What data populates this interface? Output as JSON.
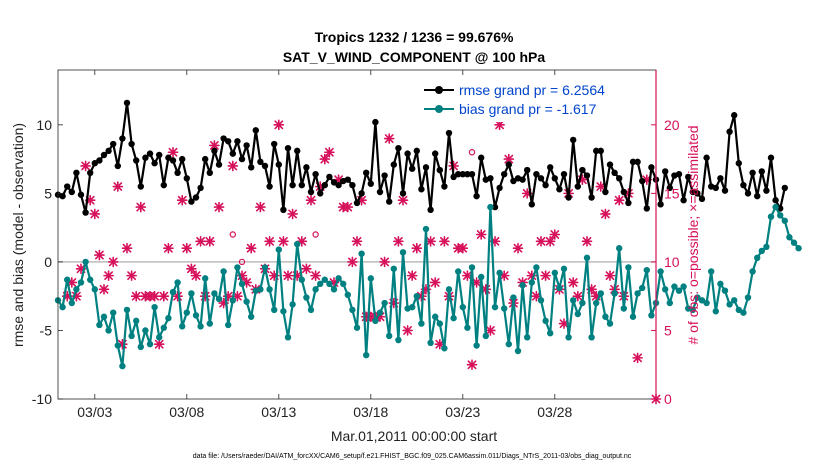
{
  "chart_data": {
    "type": "line",
    "title_line1": "Tropics 1232 / 1236 = 99.676%",
    "title_line2": "SAT_V_WIND_COMPONENT @ 100 hPa",
    "xlabel": "Mar.01,2011 00:00:00 start",
    "ylabel_left": "rmse and bias (model - observation)",
    "ylabel_right": "# of obs: o=possible; ×=assimilated",
    "footer": "data file: /Users/raeder/DAI/ATM_forcXX/CAM6_setup/f.e21.FHIST_BGC.f09_025.CAM6assim.011/Diags_NTrS_2011-03/obs_diag_output.nc",
    "x_unit": "days since Mar.01,2011 00:00",
    "xlim": [
      1,
      33.5
    ],
    "ylim_left": [
      -10,
      14
    ],
    "ylim_right": [
      0,
      24
    ],
    "x_ticks": [
      {
        "v": 3,
        "label": "03/03"
      },
      {
        "v": 8,
        "label": "03/08"
      },
      {
        "v": 13,
        "label": "03/13"
      },
      {
        "v": 18,
        "label": "03/18"
      },
      {
        "v": 23,
        "label": "03/23"
      },
      {
        "v": 28,
        "label": "03/28"
      }
    ],
    "y_ticks_left": [
      {
        "v": -10,
        "label": "-10"
      },
      {
        "v": -5,
        "label": "-5"
      },
      {
        "v": 0,
        "label": "0"
      },
      {
        "v": 5,
        "label": "5"
      },
      {
        "v": 10,
        "label": "10"
      }
    ],
    "y_ticks_right": [
      {
        "v": 0,
        "label": "0"
      },
      {
        "v": 5,
        "label": "5"
      },
      {
        "v": 10,
        "label": "10"
      },
      {
        "v": 15,
        "label": "15"
      },
      {
        "v": 20,
        "label": "20"
      }
    ],
    "colors": {
      "rmse": "#000000",
      "bias": "#008080",
      "obs": "#d6105a",
      "zero": "#bbbbbb",
      "legend_text": "#0044cc"
    },
    "x_step": 0.25,
    "series": [
      {
        "name": "rmse grand pr = 6.2564",
        "axis": "left",
        "color": "#000000",
        "values": [
          4.9,
          4.8,
          5.5,
          5.1,
          6.5,
          4.9,
          3.6,
          6.5,
          7.2,
          7.4,
          7.8,
          8.1,
          8.6,
          7.0,
          9.0,
          11.6,
          8.6,
          7.4,
          5.5,
          7.6,
          7.9,
          7.2,
          7.8,
          5.6,
          7.6,
          7.4,
          6.5,
          7.5,
          6.1,
          4.4,
          4.7,
          5.4,
          7.5,
          6.5,
          8.1,
          7.1,
          9.0,
          8.8,
          7.9,
          8.8,
          7.5,
          8.5,
          6.9,
          9.6,
          7.3,
          7.0,
          5.5,
          8.6,
          7.1,
          3.8,
          8.3,
          5.6,
          8.1,
          5.6,
          6.9,
          5.1,
          6.4,
          5.0,
          5.6,
          6.2,
          5.8,
          5.6,
          5.9,
          6.0,
          5.6,
          4.3,
          5.0,
          6.5,
          5.7,
          10.2,
          5.1,
          6.3,
          4.4,
          7.1,
          8.3,
          5.0,
          7.9,
          6.8,
          8.1,
          5.3,
          6.9,
          3.8,
          7.9,
          6.7,
          5.5,
          9.4,
          6.2,
          6.4,
          6.4,
          6.4,
          6.4,
          4.8,
          7.6,
          6.0,
          6.1,
          4.0,
          5.4,
          6.4,
          7.1,
          5.9,
          6.1,
          6.0,
          6.7,
          4.2,
          6.4,
          6.1,
          5.6,
          6.9,
          6.1,
          5.3,
          6.4,
          4.7,
          8.9,
          5.5,
          6.7,
          6.3,
          4.7,
          8.1,
          8.1,
          5.1,
          7.1,
          6.5,
          6.1,
          5.1,
          4.3,
          7.3,
          7.3,
          5.9,
          3.9,
          6.9,
          6.0,
          4.2,
          6.6,
          5.4,
          6.3,
          6.4,
          4.5,
          6.2,
          5.1,
          5.0,
          4.6,
          7.6,
          5.5,
          5.4,
          6.1,
          5.2,
          9.5,
          10.7,
          7.2,
          5.6,
          5.0,
          6.5,
          4.8,
          6.6,
          5.2,
          7.6,
          4.5,
          3.9,
          5.4
        ]
      },
      {
        "name": "bias grand pr = -1.617",
        "axis": "left",
        "color": "#008080",
        "values": [
          -2.8,
          -3.3,
          -1.3,
          -3.0,
          -2.0,
          -1.5,
          0.0,
          -1.3,
          -2.0,
          -4.6,
          -4.0,
          -5.0,
          -3.7,
          -6.1,
          -7.6,
          -3.5,
          -5.4,
          -4.3,
          -6.2,
          -5.0,
          -6.0,
          -3.3,
          -5.5,
          -4.8,
          -4.1,
          -2.2,
          -1.5,
          -4.7,
          -3.7,
          -2.3,
          -3.9,
          -4.7,
          -1.2,
          -4.5,
          -2.3,
          -2.7,
          -0.7,
          -4.6,
          -2.8,
          -0.4,
          -1.6,
          -2.9,
          -4.0,
          -2.1,
          -2.0,
          -0.4,
          -2.0,
          -3.5,
          0.9,
          -3.6,
          -5.5,
          -3.1,
          1.3,
          -1.3,
          -2.6,
          -3.5,
          -2.0,
          -1.6,
          -1.3,
          -1.6,
          -2.0,
          -1.2,
          -1.6,
          -2.4,
          -3.5,
          -4.8,
          0.6,
          -6.8,
          -1.2,
          -4.3,
          -3.7,
          -3.0,
          -5.4,
          -0.5,
          -5.7,
          0.7,
          -3.4,
          -3.3,
          -2.5,
          -4.5,
          2.4,
          -5.9,
          -4.0,
          -4.5,
          -6.3,
          -2.0,
          -4.1,
          -0.7,
          -3.3,
          -4.8,
          -0.4,
          -6.1,
          -1.1,
          -5.4,
          4.0,
          -3.3,
          -0.8,
          -3.4,
          -6.0,
          -2.6,
          -6.5,
          -1.7,
          -5.5,
          -1.5,
          -0.4,
          -2.8,
          -4.3,
          -5.2,
          -0.8,
          -1.9,
          -0.5,
          -5.5,
          -2.8,
          -3.8,
          -3.0,
          0.3,
          -5.5,
          -3.0,
          -2.3,
          -4.0,
          -4.5,
          -2.3,
          1.0,
          -3.4,
          -0.4,
          -4.0,
          -2.3,
          -1.9,
          -0.6,
          -3.9,
          -3.0,
          -0.7,
          -2.0,
          -3.0,
          -1.8,
          -2.1,
          -1.8,
          -3.4,
          -3.5,
          -2.6,
          -2.8,
          -3.0,
          -0.7,
          -3.6,
          -1.6,
          -2.1,
          -3.1,
          -2.8,
          -3.5,
          -3.7,
          -2.6,
          -0.7,
          0.3,
          0.8,
          1.1,
          3.3,
          4.0,
          3.4,
          3.0,
          1.8,
          1.4,
          1.0
        ]
      }
    ],
    "obs_assimilated": [
      {
        "x": 1.5,
        "n": 7.5
      },
      {
        "x": 1.75,
        "n": 8.5
      },
      {
        "x": 2.0,
        "n": 7.5
      },
      {
        "x": 2.25,
        "n": 9.5
      },
      {
        "x": 2.5,
        "n": 17.0
      },
      {
        "x": 2.75,
        "n": 14.5
      },
      {
        "x": 3.0,
        "n": 13.5
      },
      {
        "x": 3.25,
        "n": 10.5
      },
      {
        "x": 3.5,
        "n": 8.0
      },
      {
        "x": 3.75,
        "n": 9.0
      },
      {
        "x": 4.0,
        "n": 10.0
      },
      {
        "x": 4.25,
        "n": 15.5
      },
      {
        "x": 4.5,
        "n": 4.0
      },
      {
        "x": 4.75,
        "n": 11.0
      },
      {
        "x": 5.0,
        "n": 9.0
      },
      {
        "x": 5.25,
        "n": 7.5
      },
      {
        "x": 5.5,
        "n": 14.0
      },
      {
        "x": 5.75,
        "n": 7.5
      },
      {
        "x": 6.0,
        "n": 7.5
      },
      {
        "x": 6.25,
        "n": 7.5
      },
      {
        "x": 6.5,
        "n": 4.0
      },
      {
        "x": 6.75,
        "n": 7.5
      },
      {
        "x": 7.0,
        "n": 11.0
      },
      {
        "x": 7.25,
        "n": 18.0
      },
      {
        "x": 7.5,
        "n": 7.5
      },
      {
        "x": 7.75,
        "n": 14.5
      },
      {
        "x": 8.0,
        "n": 11.0
      },
      {
        "x": 8.25,
        "n": 9.5
      },
      {
        "x": 8.5,
        "n": 9.0
      },
      {
        "x": 8.75,
        "n": 11.5
      },
      {
        "x": 9.0,
        "n": 7.5
      },
      {
        "x": 9.25,
        "n": 11.5
      },
      {
        "x": 9.5,
        "n": 18.5
      },
      {
        "x": 9.75,
        "n": 14.0
      },
      {
        "x": 10.0,
        "n": 7.0
      },
      {
        "x": 10.25,
        "n": 7.5
      },
      {
        "x": 10.5,
        "n": 17.0
      },
      {
        "x": 10.75,
        "n": 7.5
      },
      {
        "x": 11.0,
        "n": 9.0
      },
      {
        "x": 11.25,
        "n": 8.5
      },
      {
        "x": 11.5,
        "n": 11.0
      },
      {
        "x": 11.75,
        "n": 8.0
      },
      {
        "x": 12.0,
        "n": 14.0
      },
      {
        "x": 12.25,
        "n": 9.5
      },
      {
        "x": 12.5,
        "n": 11.5
      },
      {
        "x": 12.75,
        "n": 9.0
      },
      {
        "x": 13.0,
        "n": 20.0
      },
      {
        "x": 13.25,
        "n": 11.5
      },
      {
        "x": 13.5,
        "n": 9.0
      },
      {
        "x": 13.75,
        "n": 13.5
      },
      {
        "x": 14.0,
        "n": 9.0
      },
      {
        "x": 14.25,
        "n": 11.5
      },
      {
        "x": 14.5,
        "n": 9.5
      },
      {
        "x": 14.75,
        "n": 14.5
      },
      {
        "x": 15.0,
        "n": 9.0
      },
      {
        "x": 15.25,
        "n": 15.5
      },
      {
        "x": 15.5,
        "n": 17.5
      },
      {
        "x": 15.75,
        "n": 18.0
      },
      {
        "x": 16.0,
        "n": 8.5
      },
      {
        "x": 16.25,
        "n": 16.0
      },
      {
        "x": 16.5,
        "n": 14.0
      },
      {
        "x": 16.75,
        "n": 14.0
      },
      {
        "x": 17.0,
        "n": 10.0
      },
      {
        "x": 17.25,
        "n": 11.5
      },
      {
        "x": 17.5,
        "n": 14.5
      },
      {
        "x": 17.75,
        "n": 6.0
      },
      {
        "x": 18.0,
        "n": 6.0
      },
      {
        "x": 18.25,
        "n": 6.0
      },
      {
        "x": 18.5,
        "n": 6.0
      },
      {
        "x": 18.75,
        "n": 10.0
      },
      {
        "x": 19.0,
        "n": 19.0
      },
      {
        "x": 19.25,
        "n": 7.0
      },
      {
        "x": 19.5,
        "n": 11.5
      },
      {
        "x": 19.75,
        "n": 14.5
      },
      {
        "x": 20.0,
        "n": 5.0
      },
      {
        "x": 20.25,
        "n": 9.0
      },
      {
        "x": 20.5,
        "n": 11.0
      },
      {
        "x": 20.75,
        "n": 7.5
      },
      {
        "x": 21.0,
        "n": 8.0
      },
      {
        "x": 21.25,
        "n": 11.5
      },
      {
        "x": 21.5,
        "n": 8.5
      },
      {
        "x": 21.75,
        "n": 4.0
      },
      {
        "x": 22.0,
        "n": 11.5
      },
      {
        "x": 22.25,
        "n": 7.5
      },
      {
        "x": 22.5,
        "n": 17.0
      },
      {
        "x": 22.75,
        "n": 11.0
      },
      {
        "x": 23.0,
        "n": 11.0
      },
      {
        "x": 23.25,
        "n": 9.0
      },
      {
        "x": 23.5,
        "n": 2.5
      },
      {
        "x": 23.75,
        "n": 8.5
      },
      {
        "x": 24.0,
        "n": 12.0
      },
      {
        "x": 24.25,
        "n": 8.0
      },
      {
        "x": 24.5,
        "n": 5.0
      },
      {
        "x": 24.75,
        "n": 11.5
      },
      {
        "x": 25.0,
        "n": 20.0
      },
      {
        "x": 25.25,
        "n": 9.0
      },
      {
        "x": 25.5,
        "n": 17.5
      },
      {
        "x": 25.75,
        "n": 7.0
      },
      {
        "x": 26.0,
        "n": 11.0
      },
      {
        "x": 26.25,
        "n": 8.5
      },
      {
        "x": 26.5,
        "n": 15.0
      },
      {
        "x": 26.75,
        "n": 9.0
      },
      {
        "x": 27.0,
        "n": 7.5
      },
      {
        "x": 27.25,
        "n": 11.5
      },
      {
        "x": 27.5,
        "n": 9.0
      },
      {
        "x": 27.75,
        "n": 11.5
      },
      {
        "x": 28.0,
        "n": 12.0
      },
      {
        "x": 28.25,
        "n": 8.0
      },
      {
        "x": 28.5,
        "n": 5.5
      },
      {
        "x": 28.75,
        "n": 15.0
      },
      {
        "x": 29.0,
        "n": 8.5
      },
      {
        "x": 29.25,
        "n": 7.5
      },
      {
        "x": 29.5,
        "n": 16.0
      },
      {
        "x": 29.75,
        "n": 11.5
      },
      {
        "x": 30.0,
        "n": 8.0
      },
      {
        "x": 30.25,
        "n": 7.5
      },
      {
        "x": 30.5,
        "n": 15.5
      },
      {
        "x": 30.75,
        "n": 13.5
      },
      {
        "x": 31.0,
        "n": 9.0
      },
      {
        "x": 31.25,
        "n": 8.0
      },
      {
        "x": 31.5,
        "n": 14.5
      },
      {
        "x": 31.75,
        "n": 7.5
      },
      {
        "x": 32.0,
        "n": 15.0
      },
      {
        "x": 32.5,
        "n": 3.0
      },
      {
        "x": 33.0,
        "n": 16.0
      },
      {
        "x": 33.5,
        "n": 0.0
      }
    ],
    "obs_possible": [
      {
        "x": 10.5,
        "n": 12.0
      },
      {
        "x": 11.0,
        "n": 10.0
      },
      {
        "x": 15.0,
        "n": 12.0
      },
      {
        "x": 23.5,
        "n": 18.0
      }
    ]
  }
}
